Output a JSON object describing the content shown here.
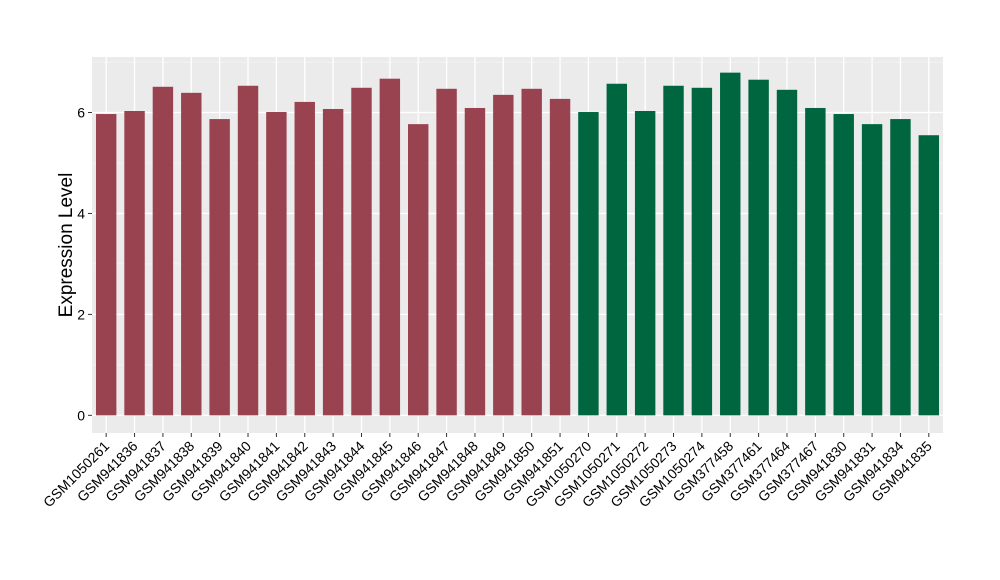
{
  "chart_data": {
    "type": "bar",
    "title": "",
    "xlabel": "",
    "ylabel": "Expression Level",
    "ylim": [
      -0.35,
      7.1
    ],
    "yticks": [
      0,
      2,
      4,
      6
    ],
    "grid": true,
    "legend": "none",
    "categories": [
      "GSM1050261",
      "GSM941836",
      "GSM941837",
      "GSM941838",
      "GSM941839",
      "GSM941840",
      "GSM941841",
      "GSM941842",
      "GSM941843",
      "GSM941844",
      "GSM941845",
      "GSM941846",
      "GSM941847",
      "GSM941848",
      "GSM941849",
      "GSM941850",
      "GSM941851",
      "GSM1050270",
      "GSM1050271",
      "GSM1050272",
      "GSM1050273",
      "GSM1050274",
      "GSM377458",
      "GSM377461",
      "GSM377464",
      "GSM377467",
      "GSM941830",
      "GSM941831",
      "GSM941834",
      "GSM941835"
    ],
    "values": [
      5.97,
      6.03,
      6.51,
      6.39,
      5.87,
      6.53,
      6.01,
      6.21,
      6.07,
      6.49,
      6.67,
      5.77,
      6.47,
      6.09,
      6.35,
      6.47,
      6.27,
      6.01,
      6.57,
      6.03,
      6.53,
      6.49,
      6.79,
      6.65,
      6.45,
      6.09,
      5.97,
      5.77,
      5.87,
      5.55
    ],
    "groups": [
      {
        "color": "#9a4350",
        "count": 17
      },
      {
        "color": "#006640",
        "count": 13
      }
    ],
    "colors": {
      "panel": "#ebebeb",
      "grid_major": "#ffffff",
      "grid_minor": "#f5f5f5"
    }
  }
}
